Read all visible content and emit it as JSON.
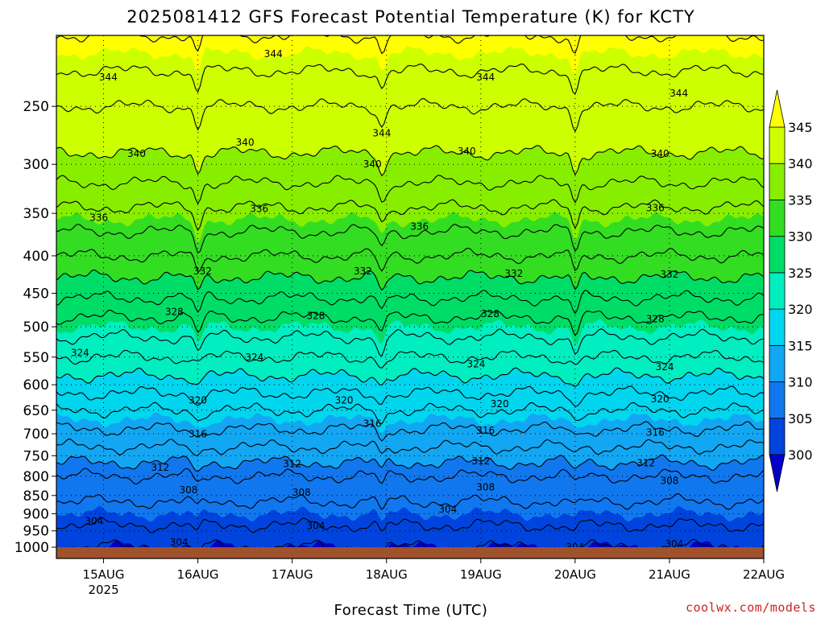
{
  "chart_data": {
    "type": "heatmap",
    "title": "2025081412 GFS Forecast Potential Temperature (K) for KCTY",
    "xlabel": "Forecast Time (UTC)",
    "ylabel": "",
    "credit": "coolwx.com/models",
    "x_ticks": [
      {
        "label": "15AUG",
        "sub": "2025",
        "day": 15.0
      },
      {
        "label": "16AUG",
        "sub": "",
        "day": 16.0
      },
      {
        "label": "17AUG",
        "sub": "",
        "day": 17.0
      },
      {
        "label": "18AUG",
        "sub": "",
        "day": 18.0
      },
      {
        "label": "19AUG",
        "sub": "",
        "day": 19.0
      },
      {
        "label": "20AUG",
        "sub": "",
        "day": 20.0
      },
      {
        "label": "21AUG",
        "sub": "",
        "day": 21.0
      },
      {
        "label": "22AUG",
        "sub": "",
        "day": 22.0
      }
    ],
    "x_range_days": [
      14.5,
      22.0
    ],
    "y_scale": "log",
    "y_range_hpa": [
      1050,
      200
    ],
    "y_ticks": [
      250,
      300,
      350,
      400,
      450,
      500,
      550,
      600,
      650,
      700,
      750,
      800,
      850,
      900,
      950,
      1000
    ],
    "grid": true,
    "colorbar": {
      "levels": [
        300,
        305,
        310,
        315,
        320,
        325,
        330,
        335,
        340,
        345
      ],
      "colors": [
        "#0000c8",
        "#0044dd",
        "#1177ee",
        "#13a6f2",
        "#00d6ee",
        "#00eec0",
        "#00dd66",
        "#33dd22",
        "#88ee00",
        "#ccff00",
        "#ffff00"
      ],
      "extend": "both",
      "below_color": "#0000c8",
      "above_color": "#ffff00"
    },
    "ground_color": "#a0522d",
    "contour_interval": 2,
    "profile": [
      {
        "p": 1000,
        "theta": 302
      },
      {
        "p": 950,
        "theta": 303.5
      },
      {
        "p": 900,
        "theta": 305
      },
      {
        "p": 850,
        "theta": 306.5
      },
      {
        "p": 800,
        "theta": 308
      },
      {
        "p": 750,
        "theta": 311
      },
      {
        "p": 700,
        "theta": 313.5
      },
      {
        "p": 650,
        "theta": 316
      },
      {
        "p": 600,
        "theta": 319
      },
      {
        "p": 550,
        "theta": 322
      },
      {
        "p": 500,
        "theta": 325
      },
      {
        "p": 450,
        "theta": 328.5
      },
      {
        "p": 400,
        "theta": 332
      },
      {
        "p": 350,
        "theta": 335.5
      },
      {
        "p": 300,
        "theta": 339.5
      },
      {
        "p": 250,
        "theta": 342
      },
      {
        "p": 200,
        "theta": 346
      }
    ],
    "contour_labels": [
      {
        "text": "344",
        "day": 15.05,
        "p": 228
      },
      {
        "text": "344",
        "day": 16.8,
        "p": 212
      },
      {
        "text": "344",
        "day": 19.05,
        "p": 228
      },
      {
        "text": "344",
        "day": 21.1,
        "p": 240
      },
      {
        "text": "344",
        "day": 17.95,
        "p": 272
      },
      {
        "text": "340",
        "day": 15.35,
        "p": 290
      },
      {
        "text": "340",
        "day": 16.5,
        "p": 280
      },
      {
        "text": "340",
        "day": 17.85,
        "p": 300
      },
      {
        "text": "340",
        "day": 18.85,
        "p": 288
      },
      {
        "text": "340",
        "day": 20.9,
        "p": 290
      },
      {
        "text": "336",
        "day": 14.95,
        "p": 355
      },
      {
        "text": "336",
        "day": 16.65,
        "p": 345
      },
      {
        "text": "336",
        "day": 18.35,
        "p": 365
      },
      {
        "text": "336",
        "day": 20.85,
        "p": 344
      },
      {
        "text": "332",
        "day": 16.05,
        "p": 420
      },
      {
        "text": "332",
        "day": 17.75,
        "p": 420
      },
      {
        "text": "332",
        "day": 19.35,
        "p": 423
      },
      {
        "text": "332",
        "day": 21.0,
        "p": 424
      },
      {
        "text": "328",
        "day": 15.75,
        "p": 477
      },
      {
        "text": "328",
        "day": 17.25,
        "p": 483
      },
      {
        "text": "328",
        "day": 19.1,
        "p": 480
      },
      {
        "text": "328",
        "day": 20.85,
        "p": 488
      },
      {
        "text": "324",
        "day": 14.75,
        "p": 543
      },
      {
        "text": "324",
        "day": 16.6,
        "p": 550
      },
      {
        "text": "324",
        "day": 18.95,
        "p": 562
      },
      {
        "text": "324",
        "day": 20.95,
        "p": 567
      },
      {
        "text": "320",
        "day": 16.0,
        "p": 630
      },
      {
        "text": "320",
        "day": 17.55,
        "p": 630
      },
      {
        "text": "320",
        "day": 19.2,
        "p": 637
      },
      {
        "text": "320",
        "day": 20.9,
        "p": 628
      },
      {
        "text": "316",
        "day": 16.0,
        "p": 701
      },
      {
        "text": "316",
        "day": 17.85,
        "p": 678
      },
      {
        "text": "316",
        "day": 19.05,
        "p": 693
      },
      {
        "text": "316",
        "day": 20.85,
        "p": 697
      },
      {
        "text": "312",
        "day": 15.6,
        "p": 778
      },
      {
        "text": "312",
        "day": 17.0,
        "p": 770
      },
      {
        "text": "312",
        "day": 19.0,
        "p": 763
      },
      {
        "text": "312",
        "day": 20.75,
        "p": 768
      },
      {
        "text": "308",
        "day": 15.9,
        "p": 836
      },
      {
        "text": "308",
        "day": 17.1,
        "p": 842
      },
      {
        "text": "308",
        "day": 19.05,
        "p": 828
      },
      {
        "text": "308",
        "day": 21.0,
        "p": 812
      },
      {
        "text": "304",
        "day": 14.9,
        "p": 921
      },
      {
        "text": "304",
        "day": 18.65,
        "p": 888
      },
      {
        "text": "304",
        "day": 17.25,
        "p": 935
      },
      {
        "text": "304",
        "day": 15.8,
        "p": 985
      },
      {
        "text": "304",
        "day": 20.0,
        "p": 1000
      },
      {
        "text": "304",
        "day": 21.05,
        "p": 990
      }
    ]
  }
}
